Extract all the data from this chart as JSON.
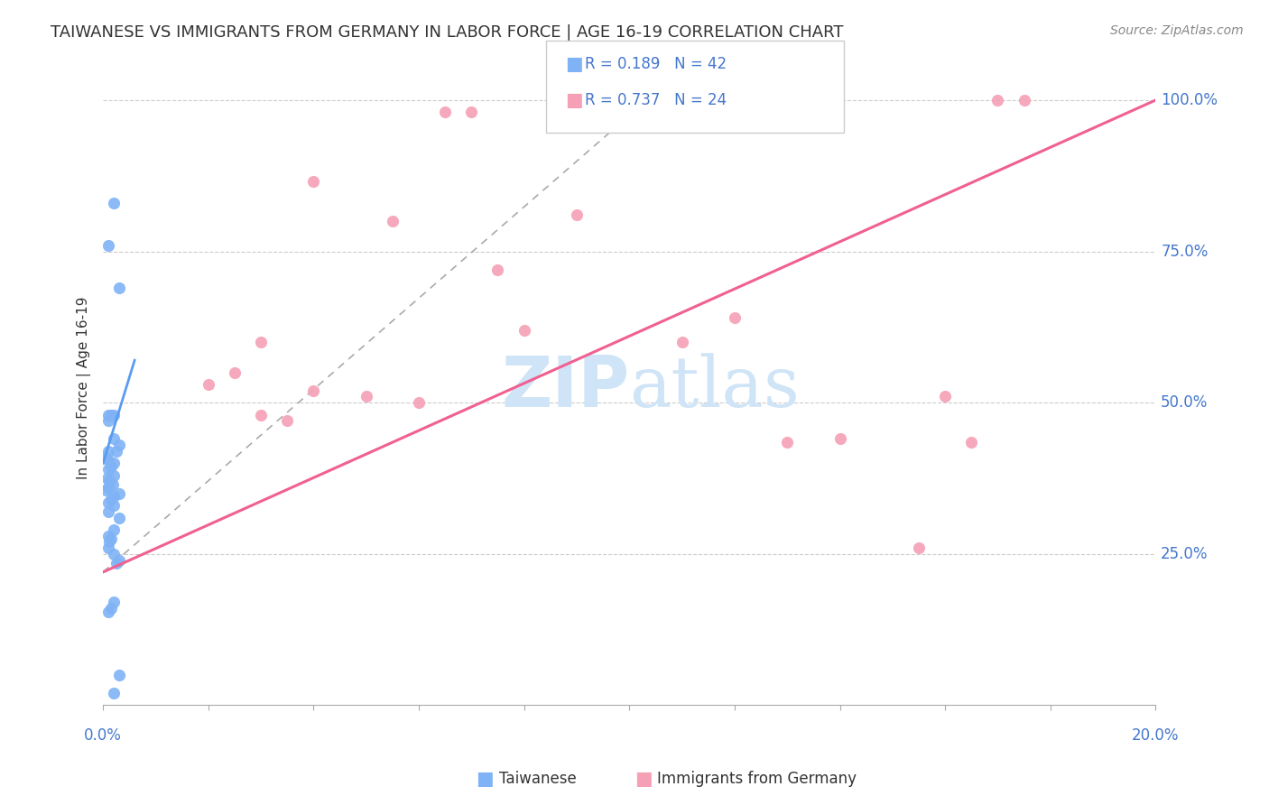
{
  "title": "TAIWANESE VS IMMIGRANTS FROM GERMANY IN LABOR FORCE | AGE 16-19 CORRELATION CHART",
  "source": "Source: ZipAtlas.com",
  "ylabel": "In Labor Force | Age 16-19",
  "xlim": [
    0.0,
    0.2
  ],
  "ylim": [
    0.0,
    1.05
  ],
  "ytick_vals": [
    0.0,
    0.25,
    0.5,
    0.75,
    1.0
  ],
  "xtick_vals": [
    0.0,
    0.02,
    0.04,
    0.06,
    0.08,
    0.1,
    0.12,
    0.14,
    0.16,
    0.18,
    0.2
  ],
  "taiwan_color": "#7fb3f5",
  "germany_color": "#f5a0b5",
  "taiwan_line_color": "#5a9cf0",
  "germany_line_color": "#f06090",
  "watermark_color": "#d0e4f7",
  "legend_taiwan_R": "0.189",
  "legend_taiwan_N": "42",
  "legend_germany_R": "0.737",
  "legend_germany_N": "24",
  "taiwan_scatter_x": [
    0.002,
    0.001,
    0.003,
    0.002,
    0.001,
    0.0015,
    0.002,
    0.003,
    0.0025,
    0.001,
    0.0005,
    0.001,
    0.002,
    0.0015,
    0.001,
    0.002,
    0.0008,
    0.0012,
    0.0018,
    0.001,
    0.0005,
    0.003,
    0.002,
    0.0015,
    0.001,
    0.002,
    0.001,
    0.003,
    0.002,
    0.001,
    0.0015,
    0.0012,
    0.001,
    0.002,
    0.003,
    0.0025,
    0.002,
    0.0015,
    0.001,
    0.003,
    0.002,
    0.001
  ],
  "taiwan_scatter_y": [
    0.83,
    0.76,
    0.69,
    0.48,
    0.47,
    0.48,
    0.44,
    0.43,
    0.42,
    0.42,
    0.41,
    0.405,
    0.4,
    0.395,
    0.39,
    0.38,
    0.375,
    0.37,
    0.365,
    0.36,
    0.355,
    0.35,
    0.345,
    0.34,
    0.335,
    0.33,
    0.32,
    0.31,
    0.29,
    0.28,
    0.275,
    0.27,
    0.26,
    0.25,
    0.24,
    0.235,
    0.17,
    0.16,
    0.155,
    0.05,
    0.02,
    0.48
  ],
  "germany_scatter_x": [
    0.065,
    0.07,
    0.04,
    0.055,
    0.09,
    0.03,
    0.025,
    0.02,
    0.04,
    0.05,
    0.06,
    0.03,
    0.035,
    0.075,
    0.08,
    0.13,
    0.14,
    0.165,
    0.16,
    0.11,
    0.12,
    0.155,
    0.17,
    0.175
  ],
  "germany_scatter_y": [
    0.98,
    0.98,
    0.865,
    0.8,
    0.81,
    0.6,
    0.55,
    0.53,
    0.52,
    0.51,
    0.5,
    0.48,
    0.47,
    0.72,
    0.62,
    0.435,
    0.44,
    0.435,
    0.51,
    0.6,
    0.64,
    0.26,
    1.0,
    1.0
  ],
  "taiwan_trend_x": [
    0.0,
    0.006
  ],
  "taiwan_trend_y": [
    0.4,
    0.57
  ],
  "germany_trend_x": [
    0.0,
    0.2
  ],
  "germany_trend_y": [
    0.22,
    1.0
  ],
  "ref_line_x": [
    0.0,
    0.11
  ],
  "ref_line_y": [
    0.22,
    1.05
  ],
  "background_color": "#ffffff",
  "grid_color": "#cccccc",
  "title_color": "#333333",
  "tick_label_color": "#4477cc"
}
